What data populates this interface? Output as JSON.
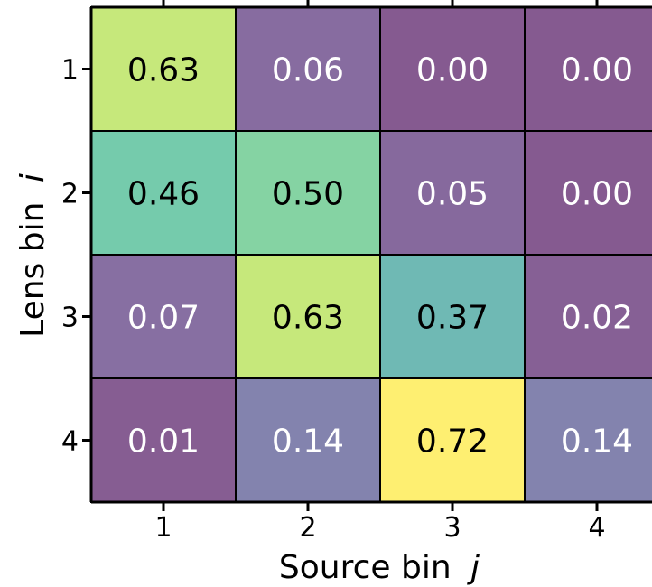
{
  "chart_data": {
    "type": "heatmap",
    "xlabel": "Source bin",
    "xlabel_var": "j",
    "ylabel": "Lens bin",
    "ylabel_var": "i",
    "x_categories": [
      "1",
      "2",
      "3",
      "4"
    ],
    "y_categories": [
      "1",
      "2",
      "3",
      "4"
    ],
    "cells": [
      [
        "0.63",
        "0.06",
        "0.00",
        "0.00"
      ],
      [
        "0.46",
        "0.50",
        "0.05",
        "0.00"
      ],
      [
        "0.07",
        "0.63",
        "0.37",
        "0.02"
      ],
      [
        "0.01",
        "0.14",
        "0.72",
        "0.14"
      ]
    ],
    "colormap": "viridis",
    "vmin": 0.0,
    "vmax": 0.72,
    "light_text_color": "#ffffff",
    "dark_text_color": "#000000"
  }
}
